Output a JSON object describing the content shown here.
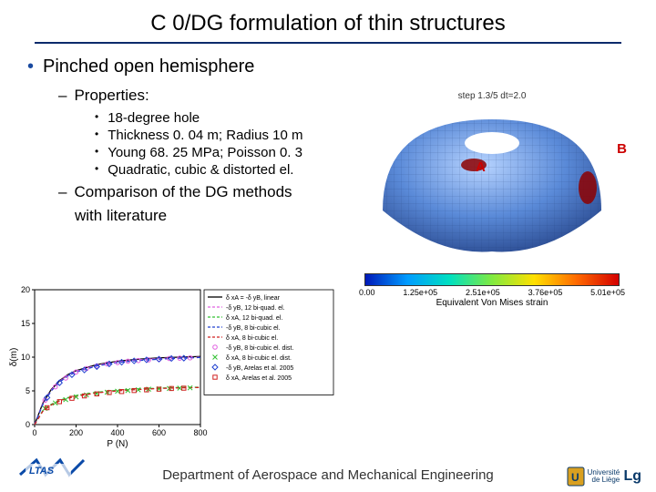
{
  "title": "C 0/DG formulation of thin structures",
  "main_bullet": "Pinched open hemisphere",
  "sub1": "Properties:",
  "props": [
    "18-degree hole",
    "Thickness 0. 04 m; Radius 10 m",
    "Young 68. 25 MPa; Poisson 0. 3",
    "Quadratic, cubic & distorted el."
  ],
  "sub2a": "Comparison of the DG methods",
  "sub2b": "with literature",
  "hemi": {
    "caption": "step 1.3/5  dt=2.0",
    "labelA": "A",
    "labelB": "B"
  },
  "colorbar": {
    "ticks": [
      "0.00",
      "1.25e+05",
      "2.51e+05",
      "3.76e+05",
      "5.01e+05"
    ],
    "label": "Equivalent Von Mises strain"
  },
  "chart": {
    "xlabel": "P (N)",
    "ylabel": "δ(m)",
    "xlim": [
      0,
      800
    ],
    "ylim": [
      0,
      20
    ],
    "xticks": [
      0,
      200,
      400,
      600,
      800
    ],
    "yticks": [
      0,
      5,
      10,
      15,
      20
    ],
    "series": [
      {
        "name": "δ xA = -δ yB, linear",
        "color": "#000",
        "style": "solid",
        "data": [
          [
            0,
            0
          ],
          [
            40,
            3.2
          ],
          [
            80,
            5.2
          ],
          [
            120,
            6.5
          ],
          [
            160,
            7.4
          ],
          [
            200,
            8.0
          ],
          [
            300,
            8.9
          ],
          [
            400,
            9.4
          ],
          [
            500,
            9.7
          ],
          [
            600,
            9.9
          ],
          [
            700,
            10.0
          ],
          [
            800,
            10.1
          ]
        ]
      },
      {
        "name": "-δ yB, 12 bi-quad. el.",
        "color": "#e060e0",
        "style": "dash",
        "data": [
          [
            0,
            0
          ],
          [
            40,
            3.1
          ],
          [
            80,
            5.1
          ],
          [
            120,
            6.4
          ],
          [
            160,
            7.3
          ],
          [
            200,
            7.9
          ],
          [
            300,
            8.8
          ],
          [
            400,
            9.3
          ],
          [
            500,
            9.6
          ],
          [
            600,
            9.8
          ],
          [
            700,
            9.9
          ],
          [
            800,
            10.0
          ]
        ]
      },
      {
        "name": "δ xA, 12 bi-quad. el.",
        "color": "#30c030",
        "style": "dash",
        "data": [
          [
            0,
            0
          ],
          [
            40,
            2.1
          ],
          [
            80,
            3.0
          ],
          [
            120,
            3.6
          ],
          [
            160,
            4.0
          ],
          [
            200,
            4.3
          ],
          [
            300,
            4.8
          ],
          [
            400,
            5.1
          ],
          [
            500,
            5.3
          ],
          [
            600,
            5.4
          ],
          [
            700,
            5.5
          ],
          [
            800,
            5.55
          ]
        ]
      },
      {
        "name": "-δ yB, 8 bi-cubic el.",
        "color": "#2040d0",
        "style": "dash",
        "data": [
          [
            0,
            0
          ],
          [
            40,
            3.0
          ],
          [
            80,
            5.0
          ],
          [
            120,
            6.3
          ],
          [
            160,
            7.2
          ],
          [
            200,
            7.8
          ],
          [
            300,
            8.7
          ],
          [
            400,
            9.2
          ],
          [
            500,
            9.5
          ],
          [
            600,
            9.7
          ],
          [
            700,
            9.85
          ],
          [
            800,
            9.95
          ]
        ]
      },
      {
        "name": "δ xA, 8 bi-cubic el.",
        "color": "#d02020",
        "style": "dash",
        "data": [
          [
            0,
            0
          ],
          [
            40,
            2.0
          ],
          [
            80,
            2.9
          ],
          [
            120,
            3.5
          ],
          [
            160,
            3.9
          ],
          [
            200,
            4.2
          ],
          [
            300,
            4.7
          ],
          [
            400,
            5.0
          ],
          [
            500,
            5.2
          ],
          [
            600,
            5.35
          ],
          [
            700,
            5.45
          ],
          [
            800,
            5.5
          ]
        ]
      }
    ],
    "markers": [
      {
        "name": "-δ yB, 8 bi-cubic el. dist.",
        "color": "#e060e0",
        "shape": "circle",
        "data": [
          [
            50,
            3.6
          ],
          [
            100,
            5.6
          ],
          [
            150,
            6.9
          ],
          [
            200,
            7.8
          ],
          [
            250,
            8.3
          ],
          [
            300,
            8.7
          ],
          [
            350,
            9.0
          ],
          [
            400,
            9.2
          ],
          [
            450,
            9.4
          ],
          [
            500,
            9.5
          ],
          [
            550,
            9.6
          ],
          [
            600,
            9.7
          ],
          [
            650,
            9.8
          ],
          [
            700,
            9.85
          ],
          [
            750,
            9.9
          ]
        ]
      },
      {
        "name": "δ xA, 8 bi-cubic el. dist.",
        "color": "#30c030",
        "shape": "x",
        "data": [
          [
            50,
            2.4
          ],
          [
            100,
            3.2
          ],
          [
            150,
            3.7
          ],
          [
            200,
            4.1
          ],
          [
            250,
            4.4
          ],
          [
            300,
            4.6
          ],
          [
            350,
            4.8
          ],
          [
            400,
            4.95
          ],
          [
            450,
            5.05
          ],
          [
            500,
            5.15
          ],
          [
            550,
            5.25
          ],
          [
            600,
            5.3
          ],
          [
            650,
            5.35
          ],
          [
            700,
            5.4
          ],
          [
            750,
            5.45
          ]
        ]
      },
      {
        "name": "-δ yB, Arelas et al. 2005",
        "color": "#2040d0",
        "shape": "diamond",
        "data": [
          [
            60,
            4.0
          ],
          [
            120,
            6.2
          ],
          [
            180,
            7.4
          ],
          [
            240,
            8.1
          ],
          [
            300,
            8.6
          ],
          [
            360,
            9.0
          ],
          [
            420,
            9.25
          ],
          [
            480,
            9.45
          ],
          [
            540,
            9.6
          ],
          [
            600,
            9.7
          ],
          [
            660,
            9.8
          ],
          [
            720,
            9.85
          ]
        ]
      },
      {
        "name": "δ xA, Arelas et al. 2005",
        "color": "#d02020",
        "shape": "square",
        "data": [
          [
            60,
            2.5
          ],
          [
            120,
            3.4
          ],
          [
            180,
            3.9
          ],
          [
            240,
            4.25
          ],
          [
            300,
            4.55
          ],
          [
            360,
            4.75
          ],
          [
            420,
            4.9
          ],
          [
            480,
            5.05
          ],
          [
            540,
            5.15
          ],
          [
            600,
            5.25
          ],
          [
            660,
            5.35
          ],
          [
            720,
            5.4
          ]
        ]
      }
    ]
  },
  "footer": "Department of Aerospace and Mechanical Engineering",
  "uni": "Université\nde Liège"
}
